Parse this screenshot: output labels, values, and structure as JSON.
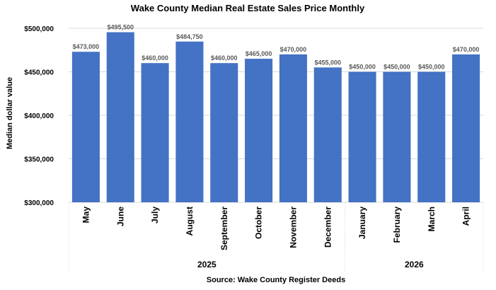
{
  "chart_data": {
    "type": "bar",
    "title": "Wake County Median Real Estate Sales Price Monthly",
    "xlabel": "",
    "ylabel": "Median dollar value",
    "source": "Source: Wake County Register Deeds",
    "categories": [
      "May",
      "June",
      "July",
      "August",
      "September",
      "October",
      "November",
      "December",
      "January",
      "February",
      "March",
      "April"
    ],
    "values": [
      473000,
      495500,
      460000,
      484750,
      460000,
      465000,
      470000,
      455000,
      450000,
      450000,
      450000,
      470000
    ],
    "data_labels": [
      "$473,000",
      "$495,500",
      "$460,000",
      "$484,750",
      "$460,000",
      "$465,000",
      "$470,000",
      "$455,000",
      "$450,000",
      "$450,000",
      "$450,000",
      "$470,000"
    ],
    "groups": [
      {
        "label": "2025",
        "count": 8
      },
      {
        "label": "2026",
        "count": 4
      }
    ],
    "ylim": [
      300000,
      500000
    ],
    "yticks": [
      300000,
      350000,
      400000,
      450000,
      500000
    ],
    "ytick_labels": [
      "$300,000",
      "$350,000",
      "$400,000",
      "$450,000",
      "$500,000"
    ],
    "grid": true,
    "bar_color": "#4472c4"
  }
}
